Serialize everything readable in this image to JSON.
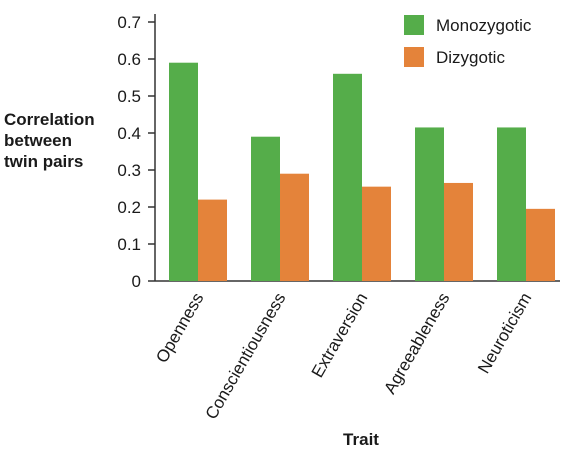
{
  "chart_data": {
    "type": "bar",
    "title": "",
    "xlabel": "Trait",
    "ylabel": [
      "Correlation",
      "between",
      "twin pairs"
    ],
    "ylim": [
      0,
      0.7
    ],
    "yticks": [
      "0",
      "0.1",
      "0.2",
      "0.3",
      "0.4",
      "0.5",
      "0.6",
      "0.7"
    ],
    "categories": [
      "Openness",
      "Conscientiousness",
      "Extraversion",
      "Agreeableness",
      "Neuroticism"
    ],
    "series": [
      {
        "name": "Monozygotic",
        "color": "#55ad4a",
        "values": [
          0.59,
          0.39,
          0.56,
          0.415,
          0.415
        ]
      },
      {
        "name": "Dizygotic",
        "color": "#e4833a",
        "values": [
          0.22,
          0.29,
          0.255,
          0.265,
          0.195
        ]
      }
    ],
    "legend": "top-right",
    "grid": false
  }
}
